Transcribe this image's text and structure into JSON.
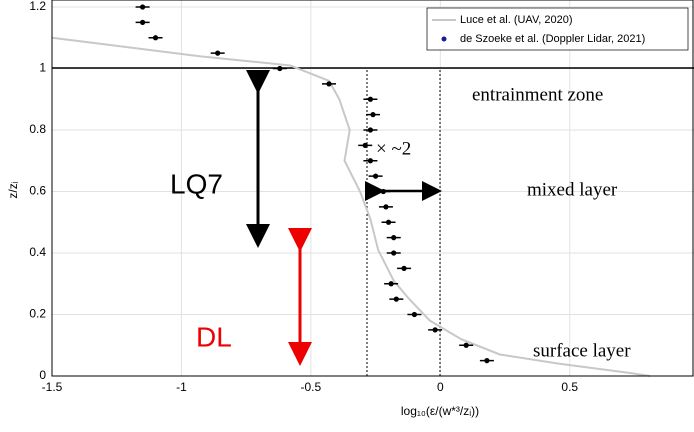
{
  "chart_data": {
    "type": "scatter",
    "xlabel": "log₁₀(ε/(w*³/zᵢ))",
    "ylabel": "z/zᵢ",
    "xlim": [
      -1.5,
      0.98
    ],
    "ylim": [
      0,
      1.2
    ],
    "xticks": [
      -1.5,
      -1,
      -0.5,
      0,
      0.5
    ],
    "yticks": [
      0,
      0.2,
      0.4,
      0.6,
      0.8,
      1,
      1.2
    ],
    "grid": true,
    "series": [
      {
        "name": "Luce et al. (UAV, 2020)",
        "color": "#c8c8c8",
        "kind": "line",
        "x": [
          -1.5,
          -1.31,
          -0.93,
          -0.58,
          -0.43,
          -0.39,
          -0.35,
          -0.37,
          -0.31,
          -0.27,
          -0.24,
          -0.18,
          -0.12,
          -0.04,
          0.08,
          0.23,
          0.46,
          0.73,
          0.81
        ],
        "values": [
          1.1,
          1.08,
          1.04,
          1.01,
          0.96,
          0.9,
          0.8,
          0.7,
          0.6,
          0.51,
          0.41,
          0.31,
          0.25,
          0.18,
          0.12,
          0.07,
          0.04,
          0.01,
          0
        ]
      },
      {
        "name": "de Szoeke et al. (Doppler Lidar, 2021)",
        "color": "#000000",
        "legend_color": "#1a1aa0",
        "kind": "points",
        "x": [
          -1.15,
          -1.15,
          -1.1,
          -0.86,
          -0.62,
          -0.43,
          -0.27,
          -0.26,
          -0.27,
          -0.29,
          -0.27,
          -0.25,
          -0.22,
          -0.21,
          -0.2,
          -0.18,
          -0.18,
          -0.14,
          -0.19,
          -0.17,
          -0.1,
          -0.02,
          0.1,
          0.18
        ],
        "values": [
          1.2,
          1.15,
          1.1,
          1.05,
          1.0,
          0.95,
          0.9,
          0.85,
          0.8,
          0.75,
          0.7,
          0.65,
          0.6,
          0.55,
          0.5,
          0.45,
          0.4,
          0.35,
          0.3,
          0.25,
          0.2,
          0.15,
          0.1,
          0.05
        ]
      }
    ],
    "annotations": {
      "entrainment": "entrainment zone",
      "mixed": "mixed layer",
      "surface": "surface layer",
      "factor": "× ~2",
      "lq7": "LQ7",
      "dl": "DL"
    }
  }
}
